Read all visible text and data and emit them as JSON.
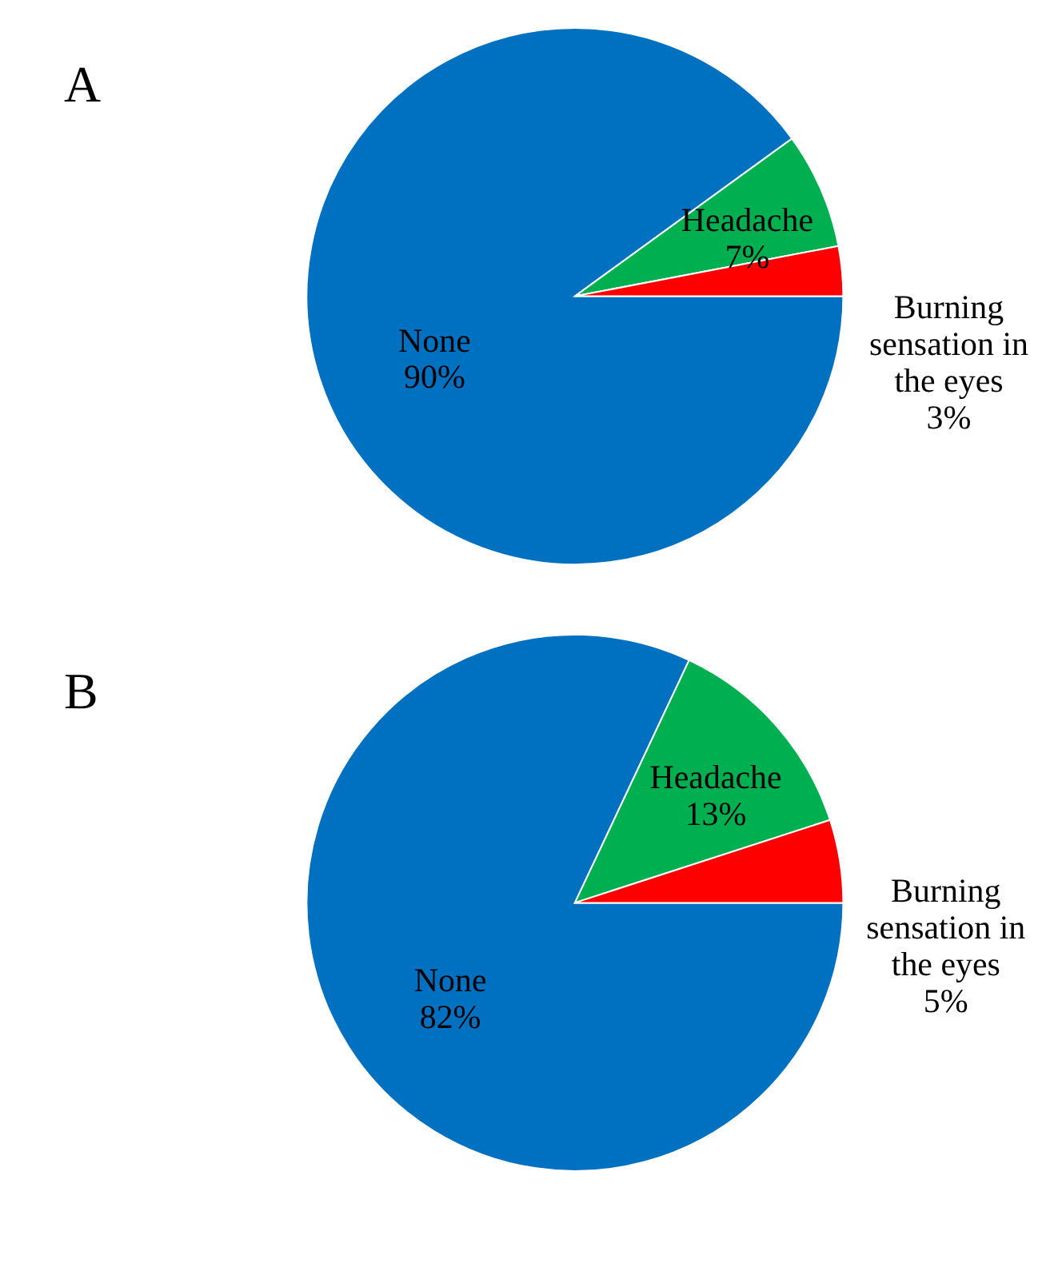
{
  "chart_data": [
    {
      "type": "pie",
      "title": "A",
      "categories": [
        "None",
        "Headache",
        "Burning sensation in the eyes"
      ],
      "values": [
        90,
        7,
        3
      ],
      "colors": [
        "#0070c0",
        "#00b050",
        "#ff0000"
      ],
      "value_labels": [
        "90%",
        "7%",
        "3%"
      ]
    },
    {
      "type": "pie",
      "title": "B",
      "categories": [
        "None",
        "Headache",
        "Burning sensation in the eyes"
      ],
      "values": [
        82,
        13,
        5
      ],
      "colors": [
        "#0070c0",
        "#00b050",
        "#ff0000"
      ],
      "value_labels": [
        "82%",
        "13%",
        "5%"
      ]
    }
  ]
}
